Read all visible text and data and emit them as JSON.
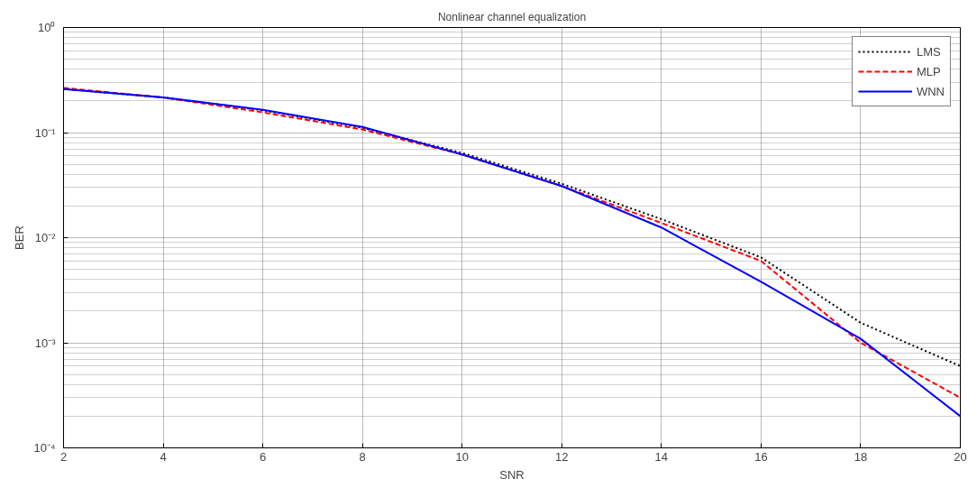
{
  "chart_data": {
    "type": "line",
    "title": "Nonlinear channel equalization",
    "xlabel": "SNR",
    "ylabel": "BER",
    "x": [
      2,
      4,
      6,
      8,
      10,
      12,
      14,
      16,
      18,
      20
    ],
    "series": [
      {
        "name": "LMS",
        "color": "#000000",
        "line_style": "dotted",
        "values": [
          0.26,
          0.216,
          0.163,
          0.111,
          0.064,
          0.0326,
          0.015,
          0.0065,
          0.00155,
          0.0006
        ]
      },
      {
        "name": "MLP",
        "color": "#ff0000",
        "line_style": "dashed",
        "values": [
          0.266,
          0.216,
          0.156,
          0.107,
          0.062,
          0.031,
          0.0138,
          0.006,
          0.001,
          0.0003
        ]
      },
      {
        "name": "WNN",
        "color": "#0000ff",
        "line_style": "solid",
        "values": [
          0.26,
          0.216,
          0.165,
          0.113,
          0.062,
          0.031,
          0.0125,
          0.0038,
          0.00109,
          0.0002
        ]
      }
    ],
    "log": "y",
    "xlim": [
      2,
      20
    ],
    "ylim": [
      0.0001,
      1
    ],
    "xticks": [
      2,
      4,
      6,
      8,
      10,
      12,
      14,
      16,
      18,
      20
    ],
    "yticks": [
      {
        "value": 0.0001,
        "label": "10⁻⁴"
      },
      {
        "value": 0.001,
        "label": "10⁻³"
      },
      {
        "value": 0.01,
        "label": "10⁻²"
      },
      {
        "value": 0.1,
        "label": "10⁻¹"
      },
      {
        "value": 1,
        "label": "10⁰"
      }
    ],
    "grid": true,
    "legend": "top right",
    "marker": "none"
  }
}
